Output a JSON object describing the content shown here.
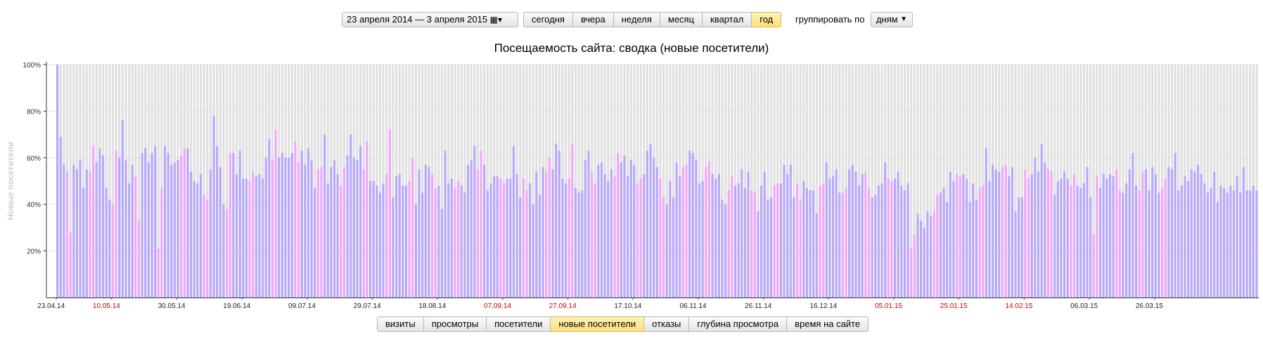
{
  "toolbar": {
    "date_range": "23 апреля 2014 — 3 апреля 2015",
    "periods": [
      "сегодня",
      "вчера",
      "неделя",
      "месяц",
      "квартал",
      "год"
    ],
    "active_period": "год",
    "group_label": "группировать по",
    "group_value": "дням"
  },
  "metrics_tabs": [
    "визиты",
    "просмотры",
    "посетители",
    "новые посетители",
    "отказы",
    "глубина просмотра",
    "время на сайте"
  ],
  "active_metric": "новые посетители",
  "colors": {
    "weekday": "#b8a8fa",
    "weekend": "#eea8f8",
    "background_bar": "#e0e0e0",
    "holiday_label": "#cc0000",
    "axis_label": "#cfcfcf"
  },
  "chart_data": {
    "type": "bar",
    "title": "Посещаемость сайта: сводка (новые посетители)",
    "ylabel": "Новые посетители",
    "ylim": [
      0,
      100
    ],
    "yticks": [
      "20%",
      "40%",
      "60%",
      "80%",
      "100%"
    ],
    "x_ticks": [
      {
        "label": "23.04.14",
        "day": 0,
        "red": false
      },
      {
        "label": "10.05.14",
        "day": 17,
        "red": true
      },
      {
        "label": "30.05.14",
        "day": 37,
        "red": false
      },
      {
        "label": "19.06.14",
        "day": 57,
        "red": false
      },
      {
        "label": "09.07.14",
        "day": 77,
        "red": false
      },
      {
        "label": "29.07.14",
        "day": 97,
        "red": false
      },
      {
        "label": "18.08.14",
        "day": 117,
        "red": false
      },
      {
        "label": "07.09.14",
        "day": 137,
        "red": true
      },
      {
        "label": "27.09.14",
        "day": 157,
        "red": true
      },
      {
        "label": "17.10.14",
        "day": 177,
        "red": false
      },
      {
        "label": "06.11.14",
        "day": 197,
        "red": false
      },
      {
        "label": "26.11.14",
        "day": 217,
        "red": false
      },
      {
        "label": "16.12.14",
        "day": 237,
        "red": false
      },
      {
        "label": "05.01.15",
        "day": 257,
        "red": true
      },
      {
        "label": "25.01.15",
        "day": 277,
        "red": true
      },
      {
        "label": "14.02.15",
        "day": 297,
        "red": true
      },
      {
        "label": "06.03.15",
        "day": 317,
        "red": false
      },
      {
        "label": "26.03.15",
        "day": 337,
        "red": false
      }
    ],
    "start_date": "23.04.14",
    "values": [
      100,
      69,
      57,
      54,
      28,
      57,
      55,
      59,
      47,
      55,
      54,
      65,
      58,
      64,
      61,
      47,
      42,
      40,
      63,
      60,
      76,
      59,
      49,
      57,
      52,
      33,
      62,
      64,
      58,
      62,
      65,
      21,
      47,
      65,
      62,
      57,
      58,
      59,
      61,
      64,
      64,
      54,
      50,
      49,
      53,
      44,
      42,
      55,
      78,
      65,
      56,
      40,
      38,
      62,
      62,
      53,
      63,
      51,
      51,
      50,
      54,
      52,
      53,
      51,
      60,
      68,
      59,
      72,
      60,
      62,
      60,
      60,
      62,
      67,
      58,
      63,
      57,
      64,
      59,
      47,
      55,
      56,
      70,
      49,
      56,
      59,
      53,
      48,
      56,
      61,
      70,
      60,
      59,
      65,
      55,
      67,
      50,
      50,
      48,
      45,
      49,
      53,
      72,
      43,
      52,
      53,
      48,
      48,
      50,
      60,
      40,
      55,
      45,
      57,
      56,
      53,
      47,
      48,
      38,
      63,
      49,
      51,
      47,
      50,
      48,
      45,
      57,
      59,
      65,
      55,
      63,
      57,
      46,
      49,
      52,
      52,
      51,
      49,
      51,
      51,
      65,
      53,
      43,
      51,
      46,
      49,
      40,
      54,
      44,
      56,
      54,
      60,
      55,
      66,
      63,
      51,
      49,
      51,
      66,
      47,
      45,
      46,
      59,
      63,
      54,
      49,
      57,
      58,
      53,
      50,
      55,
      52,
      62,
      58,
      61,
      52,
      59,
      57,
      49,
      51,
      53,
      63,
      66,
      60,
      56,
      51,
      43,
      40,
      50,
      43,
      58,
      52,
      56,
      57,
      63,
      62,
      59,
      49,
      50,
      56,
      58,
      53,
      51,
      53,
      42,
      40,
      46,
      52,
      48,
      49,
      55,
      47,
      54,
      46,
      45,
      37,
      48,
      54,
      42,
      43,
      48,
      49,
      49,
      57,
      53,
      57,
      43,
      49,
      42,
      50,
      47,
      46,
      46,
      36,
      48,
      49,
      58,
      51,
      52,
      55,
      45,
      45,
      47,
      55,
      57,
      54,
      48,
      53,
      54,
      47,
      43,
      44,
      48,
      49,
      58,
      51,
      50,
      51,
      54,
      48,
      46,
      49,
      21,
      27,
      36,
      33,
      30,
      37,
      35,
      37,
      44,
      45,
      47,
      41,
      54,
      50,
      53,
      52,
      53,
      51,
      41,
      49,
      42,
      47,
      48,
      64,
      50,
      57,
      55,
      54,
      56,
      57,
      52,
      56,
      37,
      43,
      43,
      55,
      51,
      53,
      60,
      54,
      66,
      58,
      55,
      54,
      44,
      50,
      51,
      54,
      51,
      48,
      53,
      48,
      47,
      49,
      56,
      43,
      27,
      52,
      47,
      53,
      51,
      53,
      52,
      55,
      46,
      45,
      49,
      55,
      62,
      48,
      46,
      54,
      55,
      46,
      56,
      53,
      45,
      47,
      51,
      56,
      55,
      62,
      46,
      48,
      52,
      50,
      55,
      54,
      57,
      53,
      49,
      45,
      47,
      54,
      41,
      48,
      47,
      45,
      48,
      46,
      52,
      45,
      56,
      46,
      46,
      48,
      46
    ],
    "weekend_days": [
      3,
      4,
      10,
      11,
      17,
      18,
      24,
      25,
      31,
      32,
      38,
      39,
      45,
      46,
      52,
      53,
      59,
      60,
      66,
      67,
      73,
      74,
      80,
      81,
      87,
      88,
      94,
      95,
      101,
      102,
      108,
      109,
      115,
      116,
      122,
      123,
      129,
      130,
      136,
      137,
      143,
      144,
      150,
      151,
      157,
      158,
      164,
      165,
      171,
      172,
      178,
      179,
      185,
      186,
      192,
      193,
      199,
      200,
      206,
      207,
      213,
      214,
      220,
      221,
      227,
      228,
      234,
      235,
      241,
      242,
      248,
      249,
      255,
      256,
      262,
      263,
      269,
      270,
      276,
      277,
      283,
      284,
      290,
      291,
      297,
      298,
      304,
      305,
      311,
      312,
      318,
      319,
      325,
      326,
      332,
      333,
      339,
      340
    ]
  }
}
